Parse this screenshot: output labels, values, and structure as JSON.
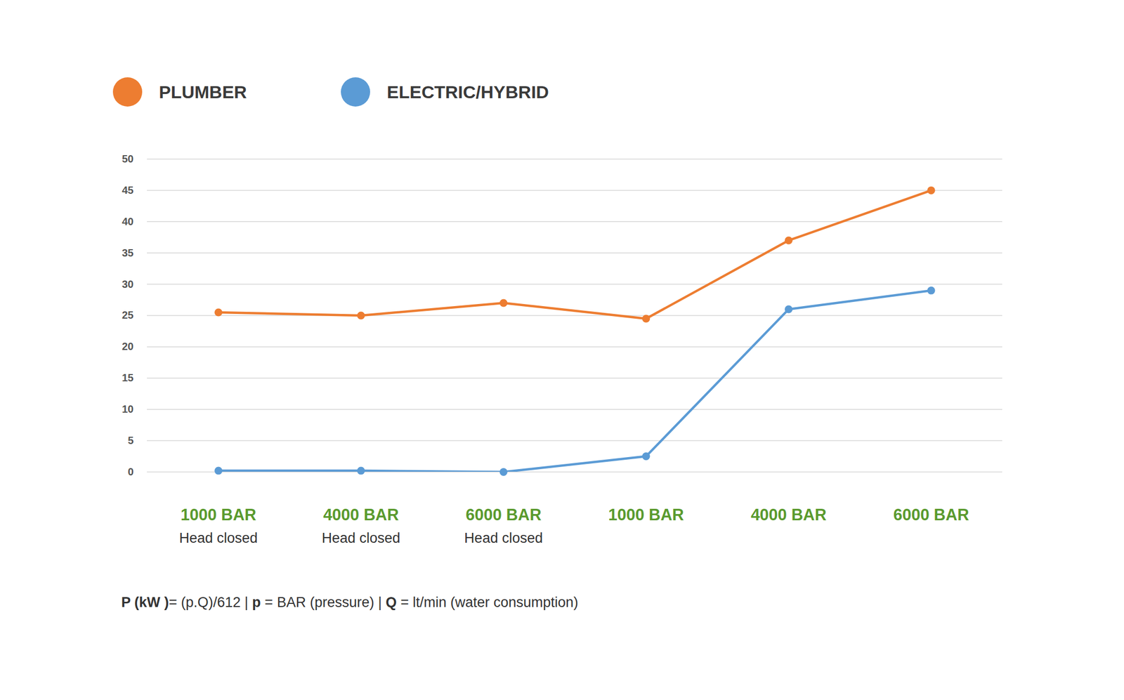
{
  "chart_data": {
    "type": "line",
    "categories": [
      "1000 BAR",
      "4000 BAR",
      "6000 BAR",
      "1000 BAR",
      "4000 BAR",
      "6000 BAR"
    ],
    "subcategories": [
      "Head closed",
      "Head closed",
      "Head closed",
      null,
      null,
      null
    ],
    "series": [
      {
        "name": "PLUMBER",
        "color": "#ed7d31",
        "marker": "circle",
        "values": [
          25.5,
          25,
          27,
          24.5,
          37,
          45
        ]
      },
      {
        "name": "ELECTRIC/HYBRID",
        "color": "#5b9bd5",
        "marker": "circle",
        "values": [
          0.2,
          0.2,
          0,
          2.5,
          26,
          29
        ]
      }
    ],
    "ylim": [
      0,
      50
    ],
    "yticks": [
      0,
      5,
      10,
      15,
      20,
      25,
      30,
      35,
      40,
      45,
      50
    ],
    "grid": true,
    "legend": "top",
    "caption": [
      {
        "text": "P (kW )",
        "bold": true
      },
      {
        "text": "= (p.Q)/612 | ",
        "bold": false
      },
      {
        "text": "p",
        "bold": true
      },
      {
        "text": " = BAR (pressure) | ",
        "bold": false
      },
      {
        "text": "Q",
        "bold": true
      },
      {
        "text": " = lt/min (water consumption)",
        "bold": false
      }
    ]
  }
}
